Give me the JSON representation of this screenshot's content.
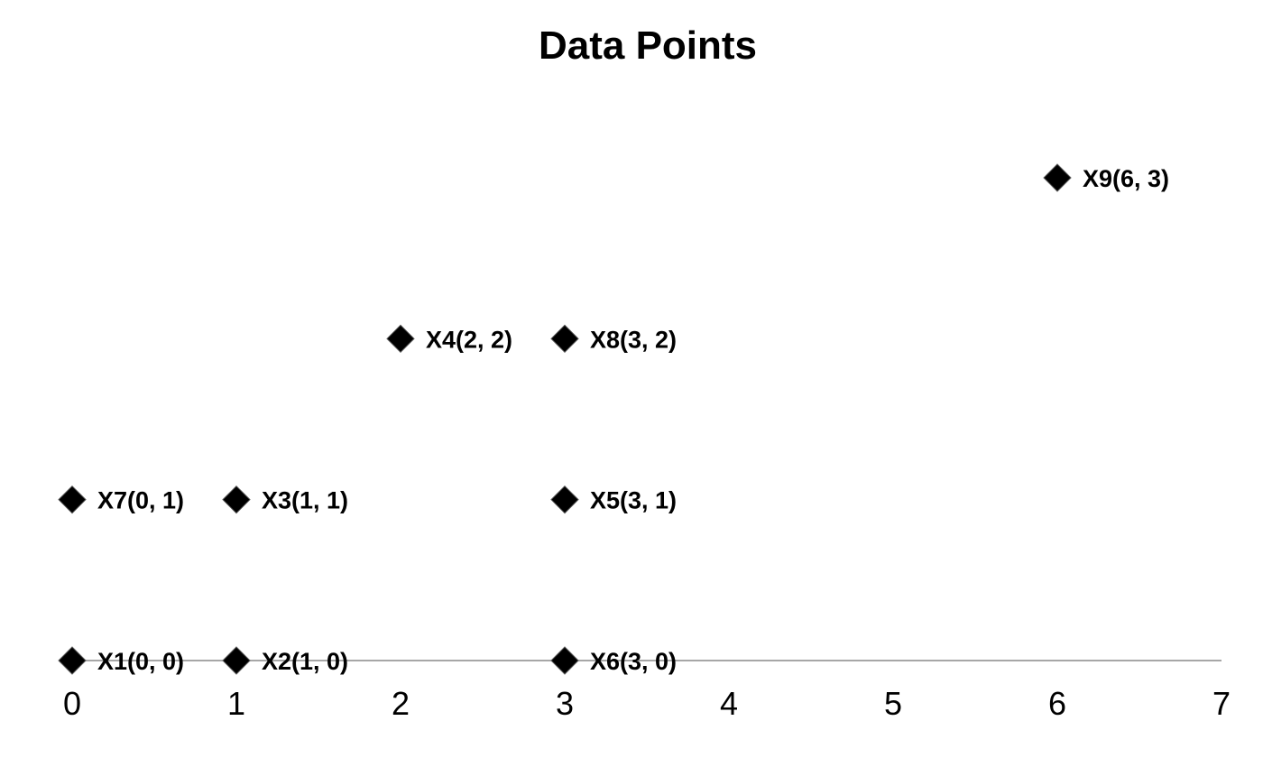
{
  "chart_data": {
    "type": "scatter",
    "title": "Data Points",
    "xlabel": "",
    "ylabel": "",
    "xlim": [
      0,
      7
    ],
    "ylim": [
      0,
      3
    ],
    "x_ticks": [
      "0",
      "1",
      "2",
      "3",
      "4",
      "5",
      "6",
      "7"
    ],
    "y_ticks_shown": false,
    "grid": false,
    "legend": "none",
    "marker": "diamond",
    "color": "#000000",
    "points": [
      {
        "label": "X1(0, 0)",
        "x": 0,
        "y": 0
      },
      {
        "label": "X2(1, 0)",
        "x": 1,
        "y": 0
      },
      {
        "label": "X3(1, 1)",
        "x": 1,
        "y": 1
      },
      {
        "label": "X4(2, 2)",
        "x": 2,
        "y": 2
      },
      {
        "label": "X5(3, 1)",
        "x": 3,
        "y": 1
      },
      {
        "label": "X6(3, 0)",
        "x": 3,
        "y": 0
      },
      {
        "label": "X7(0, 1)",
        "x": 0,
        "y": 1
      },
      {
        "label": "X8(3, 2)",
        "x": 3,
        "y": 2
      },
      {
        "label": "X9(6, 3)",
        "x": 6,
        "y": 3
      }
    ]
  }
}
